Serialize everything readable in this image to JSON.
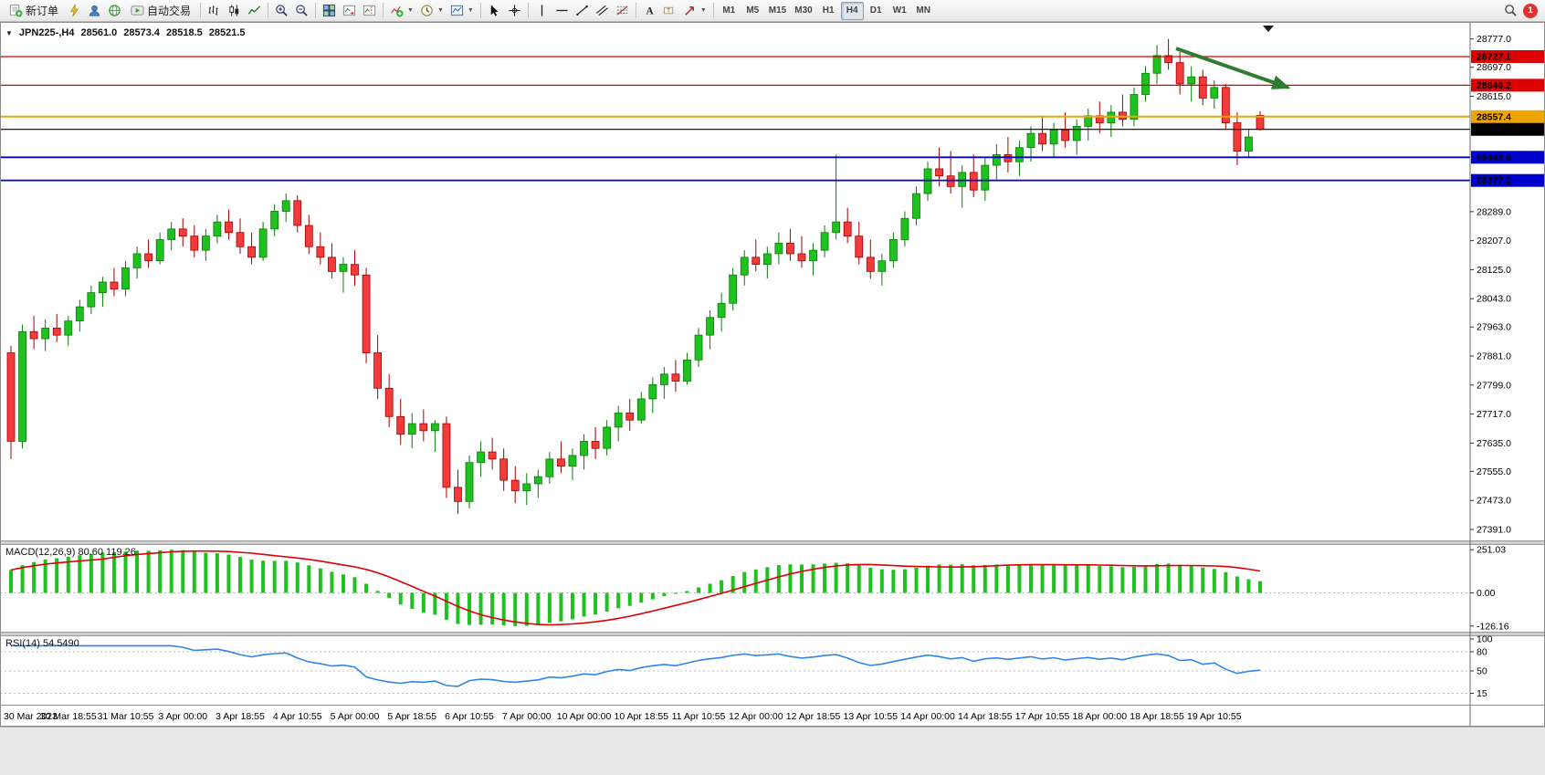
{
  "toolbar": {
    "new_order_label": "新订单",
    "autotrading_label": "自动交易",
    "timeframes": [
      "M1",
      "M5",
      "M15",
      "M30",
      "H1",
      "H4",
      "D1",
      "W1",
      "MN"
    ],
    "active_timeframe": "H4",
    "notification_count": "1"
  },
  "symbol": {
    "title": "JPN225-,H4",
    "open": "28561.0",
    "high": "28573.4",
    "low": "28518.5",
    "close": "28521.5"
  },
  "indicators": {
    "macd_label": "MACD(12,26,9) 80.60 119.26",
    "rsi_label": "RSI(14) 54.5490"
  },
  "chart_data": {
    "type": "candlestick",
    "symbol": "JPN225-",
    "timeframe": "H4",
    "price_range": [
      27360,
      28820
    ],
    "price_axis_labels": [
      28777.0,
      28697.0,
      28615.0,
      28289.0,
      28207.0,
      28125.0,
      28043.0,
      27963.0,
      27881.0,
      27799.0,
      27717.0,
      27635.0,
      27555.0,
      27473.0,
      27391.0
    ],
    "hlines": [
      {
        "price": 28727.1,
        "label": "28727.1",
        "color": "#dd0000",
        "width": 1.2,
        "name": "resistance-line-1"
      },
      {
        "price": 28646.2,
        "label": "28646.2",
        "color": "#dd0000",
        "width": 1.2,
        "name": "resistance-line-2"
      },
      {
        "price": 28557.4,
        "label": "28557.4",
        "color": "#efa500",
        "width": 2.0,
        "name": "pivot-line"
      },
      {
        "price": 28521.5,
        "label": "28521.5",
        "color": "#000000",
        "width": 1.1,
        "name": "current-price-line"
      },
      {
        "price": 28442.6,
        "label": "28442.6",
        "color": "#0000cc",
        "width": 1.8,
        "name": "support-line-1"
      },
      {
        "price": 28377.2,
        "label": "28377.2",
        "color": "#0000cc",
        "width": 1.8,
        "name": "support-line-2"
      }
    ],
    "time_labels": [
      "30 Mar 2023",
      "30 Mar 18:55",
      "31 Mar 10:55",
      "3 Apr 00:00",
      "3 Apr 18:55",
      "4 Apr 10:55",
      "5 Apr 00:00",
      "5 Apr 18:55",
      "6 Apr 10:55",
      "7 Apr 00:00",
      "10 Apr 00:00",
      "10 Apr 18:55",
      "11 Apr 10:55",
      "12 Apr 00:00",
      "12 Apr 18:55",
      "13 Apr 10:55",
      "14 Apr 00:00",
      "14 Apr 18:55",
      "17 Apr 10:55",
      "18 Apr 00:00",
      "18 Apr 18:55",
      "19 Apr 10:55"
    ],
    "label_every": 5,
    "bull_color": "#1fc11f",
    "bear_color": "#f23b3b",
    "candles": [
      [
        27890,
        27910,
        27590,
        27640
      ],
      [
        27640,
        27970,
        27620,
        27950
      ],
      [
        27950,
        27995,
        27900,
        27930
      ],
      [
        27930,
        27985,
        27895,
        27960
      ],
      [
        27960,
        28000,
        27920,
        27940
      ],
      [
        27940,
        27995,
        27910,
        27980
      ],
      [
        27980,
        28040,
        27950,
        28020
      ],
      [
        28020,
        28080,
        28000,
        28060
      ],
      [
        28060,
        28105,
        28020,
        28090
      ],
      [
        28090,
        28130,
        28050,
        28070
      ],
      [
        28070,
        28150,
        28050,
        28130
      ],
      [
        28130,
        28190,
        28100,
        28170
      ],
      [
        28170,
        28210,
        28130,
        28150
      ],
      [
        28150,
        28230,
        28140,
        28210
      ],
      [
        28210,
        28260,
        28180,
        28240
      ],
      [
        28240,
        28270,
        28190,
        28220
      ],
      [
        28220,
        28250,
        28160,
        28180
      ],
      [
        28180,
        28240,
        28150,
        28220
      ],
      [
        28220,
        28280,
        28200,
        28260
      ],
      [
        28260,
        28295,
        28210,
        28230
      ],
      [
        28230,
        28270,
        28170,
        28190
      ],
      [
        28190,
        28230,
        28140,
        28160
      ],
      [
        28160,
        28260,
        28150,
        28240
      ],
      [
        28240,
        28310,
        28220,
        28290
      ],
      [
        28290,
        28340,
        28260,
        28320
      ],
      [
        28320,
        28335,
        28230,
        28250
      ],
      [
        28250,
        28280,
        28170,
        28190
      ],
      [
        28190,
        28230,
        28140,
        28160
      ],
      [
        28160,
        28200,
        28100,
        28120
      ],
      [
        28120,
        28160,
        28060,
        28140
      ],
      [
        28140,
        28180,
        28080,
        28110
      ],
      [
        28110,
        28130,
        27860,
        27890
      ],
      [
        27890,
        27940,
        27760,
        27790
      ],
      [
        27790,
        27830,
        27680,
        27710
      ],
      [
        27710,
        27760,
        27630,
        27660
      ],
      [
        27660,
        27720,
        27620,
        27690
      ],
      [
        27690,
        27730,
        27640,
        27670
      ],
      [
        27670,
        27700,
        27610,
        27690
      ],
      [
        27690,
        27710,
        27480,
        27510
      ],
      [
        27510,
        27560,
        27435,
        27470
      ],
      [
        27470,
        27600,
        27450,
        27580
      ],
      [
        27580,
        27640,
        27540,
        27610
      ],
      [
        27610,
        27650,
        27560,
        27590
      ],
      [
        27590,
        27620,
        27500,
        27530
      ],
      [
        27530,
        27570,
        27465,
        27500
      ],
      [
        27500,
        27550,
        27460,
        27520
      ],
      [
        27520,
        27560,
        27480,
        27540
      ],
      [
        27540,
        27610,
        27520,
        27590
      ],
      [
        27590,
        27640,
        27550,
        27570
      ],
      [
        27570,
        27620,
        27530,
        27600
      ],
      [
        27600,
        27660,
        27560,
        27640
      ],
      [
        27640,
        27680,
        27590,
        27620
      ],
      [
        27620,
        27700,
        27600,
        27680
      ],
      [
        27680,
        27740,
        27640,
        27720
      ],
      [
        27720,
        27760,
        27670,
        27700
      ],
      [
        27700,
        27780,
        27690,
        27760
      ],
      [
        27760,
        27820,
        27720,
        27800
      ],
      [
        27800,
        27850,
        27760,
        27830
      ],
      [
        27830,
        27870,
        27780,
        27810
      ],
      [
        27810,
        27890,
        27800,
        27870
      ],
      [
        27870,
        27960,
        27850,
        27940
      ],
      [
        27940,
        28010,
        27900,
        27990
      ],
      [
        27990,
        28060,
        27950,
        28030
      ],
      [
        28030,
        28130,
        28010,
        28110
      ],
      [
        28110,
        28180,
        28080,
        28160
      ],
      [
        28160,
        28210,
        28120,
        28140
      ],
      [
        28140,
        28190,
        28100,
        28170
      ],
      [
        28170,
        28230,
        28140,
        28200
      ],
      [
        28200,
        28240,
        28150,
        28170
      ],
      [
        28170,
        28220,
        28130,
        28150
      ],
      [
        28150,
        28200,
        28110,
        28180
      ],
      [
        28180,
        28250,
        28160,
        28230
      ],
      [
        28230,
        28450,
        28210,
        28260
      ],
      [
        28260,
        28300,
        28200,
        28220
      ],
      [
        28220,
        28260,
        28140,
        28160
      ],
      [
        28160,
        28210,
        28100,
        28120
      ],
      [
        28120,
        28170,
        28080,
        28150
      ],
      [
        28150,
        28230,
        28130,
        28210
      ],
      [
        28210,
        28290,
        28190,
        28270
      ],
      [
        28270,
        28360,
        28250,
        28340
      ],
      [
        28340,
        28430,
        28320,
        28410
      ],
      [
        28410,
        28470,
        28360,
        28390
      ],
      [
        28390,
        28460,
        28340,
        28360
      ],
      [
        28360,
        28420,
        28300,
        28400
      ],
      [
        28400,
        28450,
        28330,
        28350
      ],
      [
        28350,
        28440,
        28320,
        28420
      ],
      [
        28420,
        28480,
        28380,
        28450
      ],
      [
        28450,
        28500,
        28400,
        28430
      ],
      [
        28430,
        28490,
        28390,
        28470
      ],
      [
        28470,
        28530,
        28430,
        28510
      ],
      [
        28510,
        28560,
        28460,
        28480
      ],
      [
        28480,
        28540,
        28440,
        28520
      ],
      [
        28520,
        28570,
        28470,
        28490
      ],
      [
        28490,
        28550,
        28450,
        28530
      ],
      [
        28530,
        28580,
        28490,
        28560
      ],
      [
        28560,
        28600,
        28510,
        28540
      ],
      [
        28540,
        28590,
        28500,
        28570
      ],
      [
        28570,
        28620,
        28530,
        28550
      ],
      [
        28550,
        28640,
        28530,
        28620
      ],
      [
        28620,
        28700,
        28600,
        28680
      ],
      [
        28680,
        28760,
        28650,
        28730
      ],
      [
        28730,
        28777,
        28690,
        28710
      ],
      [
        28710,
        28740,
        28620,
        28650
      ],
      [
        28650,
        28700,
        28600,
        28670
      ],
      [
        28670,
        28690,
        28590,
        28610
      ],
      [
        28610,
        28660,
        28580,
        28640
      ],
      [
        28640,
        28650,
        28520,
        28540
      ],
      [
        28540,
        28570,
        28420,
        28460
      ],
      [
        28460,
        28520,
        28440,
        28500
      ],
      [
        28561,
        28573.4,
        28518.5,
        28521.5
      ]
    ],
    "macd": {
      "params": "12,26,9",
      "values": [
        80.6,
        119.26
      ],
      "axis_labels": [
        "251.03",
        "0.00",
        "-126.16"
      ],
      "histogram_color": "#1fc11f",
      "signal_color": "#e00000"
    },
    "rsi": {
      "period": 14,
      "value": 54.549,
      "levels": [
        80,
        50,
        15
      ],
      "axis_labels": [
        "100",
        "80",
        "50",
        "15"
      ],
      "line_color": "#2e86e8"
    },
    "annotation_arrow": {
      "color": "#2e7d32",
      "from": [
        0.8,
        28750
      ],
      "to": [
        0.876,
        28640
      ]
    }
  }
}
